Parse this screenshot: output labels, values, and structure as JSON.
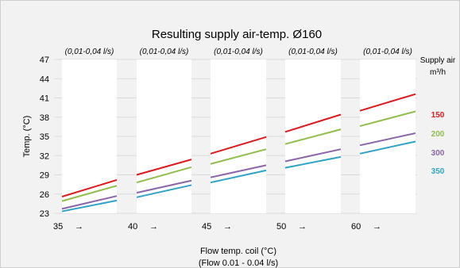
{
  "chart_data": {
    "type": "line",
    "title": "Resulting supply air-temp. Ø160",
    "ylabel": "Temp. (°C)",
    "xlabel_line1": "Flow temp. coil (°C)",
    "xlabel_line2": "(Flow 0.01 - 0.04 l/s)",
    "yticks": [
      "47",
      "44",
      "41",
      "38",
      "35",
      "32",
      "29",
      "26",
      "23"
    ],
    "ylim": [
      23,
      47
    ],
    "grid": true,
    "legend_title_line1": "Supply air",
    "legend_title_line2": "m³/h",
    "legend_position": "right",
    "panels": [
      {
        "header": "(0,01-0,04 l/s)",
        "x_label": "35",
        "arrow": "→"
      },
      {
        "header": "(0,01-0,04 l/s)",
        "x_label": "40",
        "arrow": "→"
      },
      {
        "header": "(0,01-0,04 l/s)",
        "x_label": "45",
        "arrow": "→"
      },
      {
        "header": "(0,01-0,04 l/s)",
        "x_label": "50",
        "arrow": "→"
      },
      {
        "header": "(0,01-0,04 l/s)",
        "x_label": "60",
        "arrow": "→"
      }
    ],
    "series": [
      {
        "name": "150",
        "color": "#e0191c",
        "values": [
          [
            25.6,
            28.2
          ],
          [
            29.0,
            31.4
          ],
          [
            32.3,
            34.9
          ],
          [
            35.7,
            38.4
          ],
          [
            39.0,
            41.6
          ]
        ]
      },
      {
        "name": "200",
        "color": "#8fbf4a",
        "values": [
          [
            24.9,
            27.3
          ],
          [
            27.8,
            30.2
          ],
          [
            30.7,
            33.0
          ],
          [
            33.8,
            36.1
          ],
          [
            36.6,
            38.9
          ]
        ]
      },
      {
        "name": "300",
        "color": "#8c64a8",
        "values": [
          [
            23.7,
            25.7
          ],
          [
            26.2,
            28.1
          ],
          [
            28.6,
            30.5
          ],
          [
            31.1,
            33.0
          ],
          [
            33.6,
            35.5
          ]
        ]
      },
      {
        "name": "350",
        "color": "#2ea3c8",
        "values": [
          [
            23.3,
            25.0
          ],
          [
            25.5,
            27.4
          ],
          [
            27.8,
            29.7
          ],
          [
            30.1,
            31.8
          ],
          [
            32.3,
            34.2
          ]
        ]
      }
    ]
  }
}
